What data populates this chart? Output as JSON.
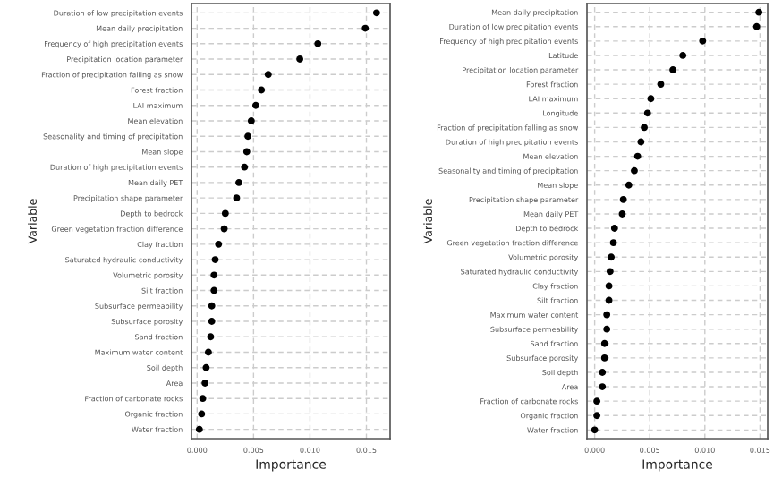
{
  "chart_data": [
    {
      "type": "scatter",
      "orientation": "horizontal",
      "xlabel": "Importance",
      "ylabel": "Variable",
      "marker": "circle",
      "grid": true,
      "categories": [
        "Duration of low precipitation events",
        "Mean daily precipitation",
        "Frequency of high precipitation events",
        "Precipitation location parameter",
        "Fraction of precipitation falling as snow",
        "Forest fraction",
        "LAI maximum",
        "Mean elevation",
        "Seasonality and timing of precipitation",
        "Mean slope",
        "Duration of high precipitation events",
        "Mean daily PET",
        "Precipitation shape parameter",
        "Depth to bedrock",
        "Green vegetation fraction difference",
        "Clay fraction",
        "Saturated hydraulic conductivity",
        "Volumetric porosity",
        "Silt fraction",
        "Subsurface permeability",
        "Subsurface porosity",
        "Sand fraction",
        "Maximum water content",
        "Soil depth",
        "Area",
        "Fraction of carbonate rocks",
        "Organic fraction",
        "Water fraction"
      ],
      "series": [
        {
          "color": "#000000",
          "values": [
            0.0159,
            0.0149,
            0.0107,
            0.0091,
            0.0063,
            0.0057,
            0.0052,
            0.0048,
            0.0045,
            0.0044,
            0.0042,
            0.0037,
            0.0035,
            0.0025,
            0.0024,
            0.0019,
            0.0016,
            0.0015,
            0.0015,
            0.0013,
            0.0013,
            0.0012,
            0.001,
            0.0008,
            0.0007,
            0.0005,
            0.0004,
            0.0002
          ]
        }
      ],
      "xlim": [
        -0.0005,
        0.0171
      ],
      "xticks": [
        {
          "value": 0.0,
          "label": "0.000"
        },
        {
          "value": 0.005,
          "label": "0.005"
        },
        {
          "value": 0.01,
          "label": "0.010"
        },
        {
          "value": 0.015,
          "label": "0.015"
        }
      ]
    },
    {
      "type": "scatter",
      "orientation": "horizontal",
      "xlabel": "Importance",
      "ylabel": "Variable",
      "marker": "circle",
      "grid": true,
      "categories": [
        "Mean daily precipitation",
        "Duration of low precipitation events",
        "Frequency of high precipitation events",
        "Latitude",
        "Precipitation location parameter",
        "Forest fraction",
        "LAI maximum",
        "Longitude",
        "Fraction of precipitation falling as snow",
        "Duration of high precipitation events",
        "Mean elevation",
        "Seasonality and timing of precipitation",
        "Mean slope",
        "Precipitation shape parameter",
        "Mean daily PET",
        "Depth to bedrock",
        "Green vegetation fraction difference",
        "Volumetric porosity",
        "Saturated hydraulic conductivity",
        "Clay fraction",
        "Silt fraction",
        "Maximum water content",
        "Subsurface permeability",
        "Sand fraction",
        "Subsurface porosity",
        "Soil depth",
        "Area",
        "Fraction of carbonate rocks",
        "Organic fraction",
        "Water fraction"
      ],
      "series": [
        {
          "color": "#000000",
          "values": [
            0.0149,
            0.0147,
            0.0098,
            0.008,
            0.0071,
            0.006,
            0.0051,
            0.0048,
            0.0045,
            0.0042,
            0.0039,
            0.0036,
            0.0031,
            0.0026,
            0.0025,
            0.0018,
            0.0017,
            0.0015,
            0.0014,
            0.0013,
            0.0013,
            0.0011,
            0.0011,
            0.0009,
            0.0009,
            0.0007,
            0.0007,
            0.0002,
            0.0002,
            0.0
          ]
        }
      ],
      "xlim": [
        -0.0007,
        0.0157
      ],
      "xticks": [
        {
          "value": 0.0,
          "label": "0.000"
        },
        {
          "value": 0.005,
          "label": "0.005"
        },
        {
          "value": 0.01,
          "label": "0.010"
        },
        {
          "value": 0.015,
          "label": "0.015"
        }
      ]
    }
  ]
}
